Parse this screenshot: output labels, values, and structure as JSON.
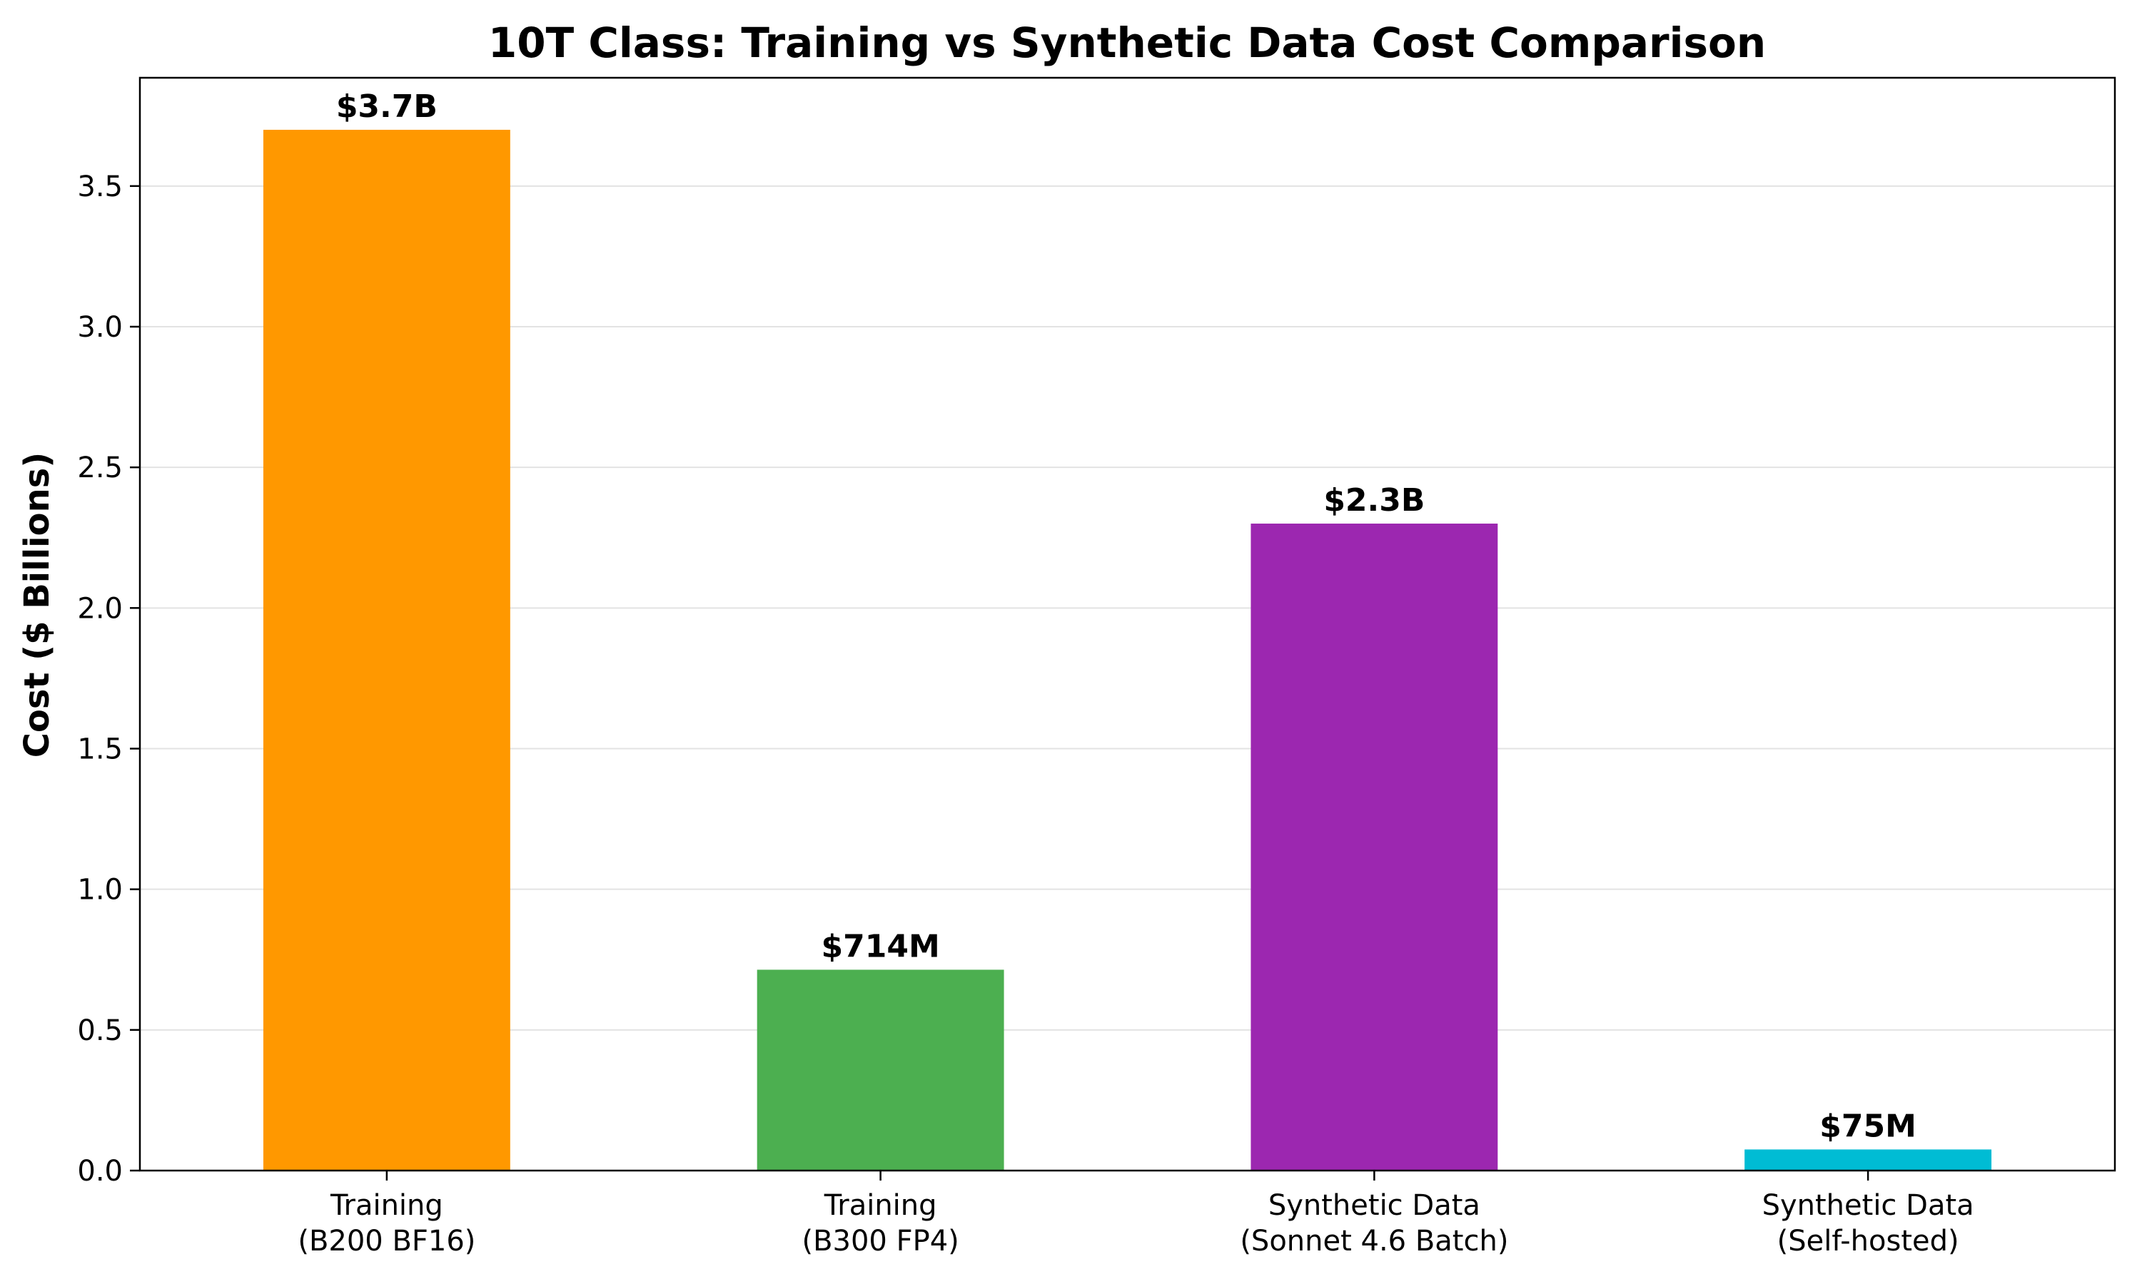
{
  "chart_data": {
    "type": "bar",
    "title": "10T Class: Training vs Synthetic Data Cost Comparison",
    "xlabel": "",
    "ylabel": "Cost ($ Billions)",
    "ylim": [
      0,
      3.885
    ],
    "yticks": [
      "0.0",
      "0.5",
      "1.0",
      "1.5",
      "2.0",
      "2.5",
      "3.0",
      "3.5"
    ],
    "grid": "horizontal",
    "categories": [
      [
        "Training",
        "(B200 BF16)"
      ],
      [
        "Training",
        "(B300 FP4)"
      ],
      [
        "Synthetic Data",
        "(Sonnet 4.6 Batch)"
      ],
      [
        "Synthetic Data",
        "(Self-hosted)"
      ]
    ],
    "values": [
      3.7,
      0.714,
      2.3,
      0.075
    ],
    "value_labels": [
      "$3.7B",
      "$714M",
      "$2.3B",
      "$75M"
    ],
    "colors": [
      "#FF9800",
      "#4CAF50",
      "#9C27B0",
      "#00BCD4"
    ]
  }
}
